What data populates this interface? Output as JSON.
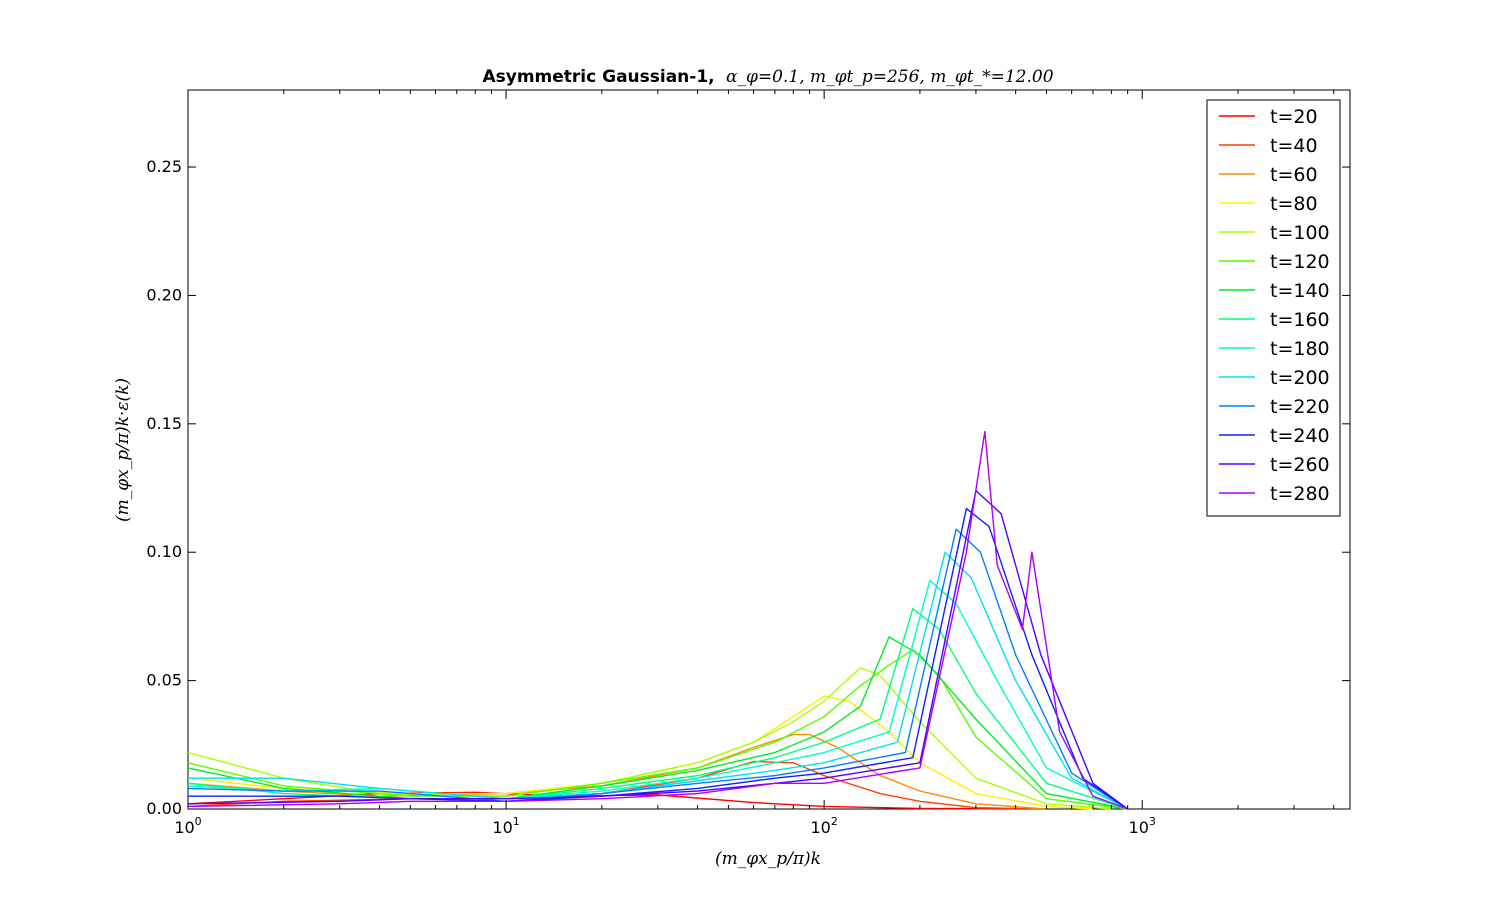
{
  "chart_data": {
    "type": "line",
    "title_bold": "Asymmetric Gaussian-1,",
    "title_math": "α_φ=0.1, m_φt_p=256, m_φt_*=12.00",
    "xlabel": "(m_φx_p/π)k",
    "ylabel": "(m_φx_p/π)k·ε(k)",
    "xscale": "log",
    "xlim": [
      1,
      4500
    ],
    "ylim": [
      0,
      0.28
    ],
    "x_ticks": [
      {
        "value": 1,
        "base": "10",
        "exp": "0"
      },
      {
        "value": 10,
        "base": "10",
        "exp": "1"
      },
      {
        "value": 100,
        "base": "10",
        "exp": "2"
      },
      {
        "value": 1000,
        "base": "10",
        "exp": "3"
      }
    ],
    "y_ticks": [
      {
        "value": 0.0,
        "label": "0.00"
      },
      {
        "value": 0.05,
        "label": "0.05"
      },
      {
        "value": 0.1,
        "label": "0.10"
      },
      {
        "value": 0.15,
        "label": "0.15"
      },
      {
        "value": 0.2,
        "label": "0.20"
      },
      {
        "value": 0.25,
        "label": "0.25"
      }
    ],
    "legend_position": "upper-right",
    "grid": false,
    "series": [
      {
        "name": "t=20",
        "color": "#ff0000",
        "points": [
          [
            1,
            0.002
          ],
          [
            2,
            0.004
          ],
          [
            4,
            0.006
          ],
          [
            8,
            0.0065
          ],
          [
            15,
            0.005
          ],
          [
            30,
            0.0055
          ],
          [
            60,
            0.0025
          ],
          [
            100,
            0.001
          ],
          [
            200,
            0.0002
          ],
          [
            500,
            0
          ]
        ]
      },
      {
        "name": "t=40",
        "color": "#ff4000",
        "points": [
          [
            1,
            0.001
          ],
          [
            2,
            0.003
          ],
          [
            5,
            0.004
          ],
          [
            10,
            0.004
          ],
          [
            20,
            0.006
          ],
          [
            40,
            0.012
          ],
          [
            60,
            0.0185
          ],
          [
            80,
            0.018
          ],
          [
            100,
            0.013
          ],
          [
            150,
            0.006
          ],
          [
            200,
            0.003
          ],
          [
            300,
            0.0005
          ],
          [
            500,
            0
          ]
        ]
      },
      {
        "name": "t=60",
        "color": "#ff8c00",
        "points": [
          [
            1,
            0.01
          ],
          [
            2,
            0.007
          ],
          [
            4,
            0.005
          ],
          [
            10,
            0.006
          ],
          [
            20,
            0.009
          ],
          [
            40,
            0.016
          ],
          [
            60,
            0.024
          ],
          [
            80,
            0.029
          ],
          [
            90,
            0.029
          ],
          [
            110,
            0.024
          ],
          [
            150,
            0.013
          ],
          [
            200,
            0.007
          ],
          [
            300,
            0.002
          ],
          [
            500,
            0
          ]
        ]
      },
      {
        "name": "t=80",
        "color": "#ffee00",
        "points": [
          [
            1,
            0.012
          ],
          [
            2,
            0.008
          ],
          [
            5,
            0.006
          ],
          [
            10,
            0.006
          ],
          [
            20,
            0.01
          ],
          [
            40,
            0.018
          ],
          [
            60,
            0.026
          ],
          [
            80,
            0.036
          ],
          [
            100,
            0.044
          ],
          [
            120,
            0.042
          ],
          [
            160,
            0.03
          ],
          [
            200,
            0.018
          ],
          [
            300,
            0.006
          ],
          [
            500,
            0.001
          ],
          [
            700,
            0
          ]
        ]
      },
      {
        "name": "t=100",
        "color": "#aaff00",
        "points": [
          [
            1,
            0.022
          ],
          [
            2,
            0.012
          ],
          [
            4,
            0.006
          ],
          [
            10,
            0.005
          ],
          [
            20,
            0.01
          ],
          [
            40,
            0.018
          ],
          [
            60,
            0.026
          ],
          [
            80,
            0.034
          ],
          [
            100,
            0.042
          ],
          [
            130,
            0.055
          ],
          [
            150,
            0.052
          ],
          [
            200,
            0.034
          ],
          [
            300,
            0.012
          ],
          [
            500,
            0.002
          ],
          [
            800,
            0
          ]
        ]
      },
      {
        "name": "t=120",
        "color": "#55ff00",
        "points": [
          [
            1,
            0.018
          ],
          [
            2,
            0.009
          ],
          [
            5,
            0.005
          ],
          [
            10,
            0.005
          ],
          [
            20,
            0.01
          ],
          [
            40,
            0.016
          ],
          [
            70,
            0.026
          ],
          [
            100,
            0.036
          ],
          [
            130,
            0.048
          ],
          [
            160,
            0.056
          ],
          [
            190,
            0.062
          ],
          [
            230,
            0.052
          ],
          [
            300,
            0.028
          ],
          [
            500,
            0.004
          ],
          [
            900,
            0
          ]
        ]
      },
      {
        "name": "t=140",
        "color": "#00ee22",
        "points": [
          [
            1,
            0.016
          ],
          [
            2,
            0.008
          ],
          [
            5,
            0.004
          ],
          [
            10,
            0.004
          ],
          [
            20,
            0.009
          ],
          [
            40,
            0.015
          ],
          [
            70,
            0.022
          ],
          [
            100,
            0.03
          ],
          [
            130,
            0.04
          ],
          [
            160,
            0.067
          ],
          [
            200,
            0.06
          ],
          [
            300,
            0.035
          ],
          [
            500,
            0.006
          ],
          [
            900,
            0
          ]
        ]
      },
      {
        "name": "t=160",
        "color": "#00ff80",
        "points": [
          [
            1,
            0.01
          ],
          [
            2,
            0.006
          ],
          [
            5,
            0.004
          ],
          [
            10,
            0.004
          ],
          [
            20,
            0.008
          ],
          [
            40,
            0.013
          ],
          [
            70,
            0.02
          ],
          [
            100,
            0.026
          ],
          [
            150,
            0.035
          ],
          [
            190,
            0.078
          ],
          [
            230,
            0.07
          ],
          [
            300,
            0.045
          ],
          [
            500,
            0.01
          ],
          [
            900,
            0
          ]
        ]
      },
      {
        "name": "t=180",
        "color": "#00ffc8",
        "points": [
          [
            1,
            0.009
          ],
          [
            2,
            0.007
          ],
          [
            4,
            0.008
          ],
          [
            10,
            0.004
          ],
          [
            20,
            0.007
          ],
          [
            40,
            0.012
          ],
          [
            70,
            0.018
          ],
          [
            100,
            0.022
          ],
          [
            160,
            0.03
          ],
          [
            215,
            0.089
          ],
          [
            260,
            0.08
          ],
          [
            350,
            0.05
          ],
          [
            500,
            0.016
          ],
          [
            900,
            0
          ]
        ]
      },
      {
        "name": "t=200",
        "color": "#00e0f0",
        "points": [
          [
            1,
            0.012
          ],
          [
            2,
            0.012
          ],
          [
            4,
            0.008
          ],
          [
            10,
            0.004
          ],
          [
            20,
            0.006
          ],
          [
            40,
            0.011
          ],
          [
            70,
            0.015
          ],
          [
            100,
            0.018
          ],
          [
            170,
            0.026
          ],
          [
            240,
            0.1
          ],
          [
            290,
            0.09
          ],
          [
            400,
            0.05
          ],
          [
            600,
            0.012
          ],
          [
            900,
            0
          ]
        ]
      },
      {
        "name": "t=220",
        "color": "#0080ff",
        "points": [
          [
            1,
            0.008
          ],
          [
            2,
            0.007
          ],
          [
            4,
            0.007
          ],
          [
            10,
            0.003
          ],
          [
            20,
            0.006
          ],
          [
            40,
            0.01
          ],
          [
            70,
            0.013
          ],
          [
            100,
            0.016
          ],
          [
            180,
            0.022
          ],
          [
            260,
            0.109
          ],
          [
            310,
            0.1
          ],
          [
            400,
            0.06
          ],
          [
            600,
            0.014
          ],
          [
            900,
            0
          ]
        ]
      },
      {
        "name": "t=240",
        "color": "#1020ff",
        "points": [
          [
            1,
            0.005
          ],
          [
            3,
            0.005
          ],
          [
            5,
            0.004
          ],
          [
            10,
            0.003
          ],
          [
            20,
            0.005
          ],
          [
            40,
            0.008
          ],
          [
            70,
            0.012
          ],
          [
            100,
            0.014
          ],
          [
            190,
            0.02
          ],
          [
            280,
            0.117
          ],
          [
            330,
            0.11
          ],
          [
            450,
            0.06
          ],
          [
            650,
            0.012
          ],
          [
            900,
            0
          ]
        ]
      },
      {
        "name": "t=260",
        "color": "#5000ff",
        "points": [
          [
            1,
            0.002
          ],
          [
            3,
            0.003
          ],
          [
            5,
            0.004
          ],
          [
            10,
            0.004
          ],
          [
            20,
            0.005
          ],
          [
            40,
            0.007
          ],
          [
            70,
            0.01
          ],
          [
            100,
            0.012
          ],
          [
            200,
            0.018
          ],
          [
            300,
            0.124
          ],
          [
            360,
            0.115
          ],
          [
            480,
            0.06
          ],
          [
            700,
            0.01
          ],
          [
            900,
            0
          ]
        ]
      },
      {
        "name": "t=280",
        "color": "#aa00ff",
        "points": [
          [
            1,
            0.001
          ],
          [
            3,
            0.002
          ],
          [
            5,
            0.003
          ],
          [
            10,
            0.003
          ],
          [
            20,
            0.004
          ],
          [
            40,
            0.006
          ],
          [
            70,
            0.01
          ],
          [
            100,
            0.01
          ],
          [
            200,
            0.016
          ],
          [
            280,
            0.1
          ],
          [
            320,
            0.147
          ],
          [
            350,
            0.095
          ],
          [
            420,
            0.07
          ],
          [
            450,
            0.1
          ],
          [
            550,
            0.03
          ],
          [
            700,
            0.005
          ],
          [
            900,
            0
          ]
        ]
      }
    ]
  }
}
